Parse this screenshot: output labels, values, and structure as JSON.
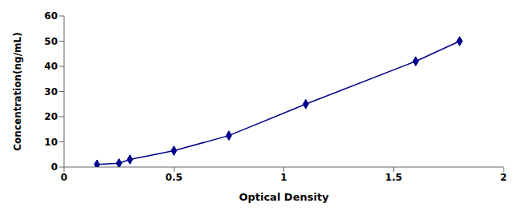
{
  "chart_data": {
    "type": "line",
    "x": [
      0.15,
      0.25,
      0.3,
      0.5,
      0.75,
      1.1,
      1.6,
      1.8
    ],
    "values": [
      1.0,
      1.5,
      3.0,
      6.5,
      12.5,
      25.0,
      42.0,
      50.0
    ],
    "xlabel": "Optical Density",
    "ylabel": "Concentration(ng/mL)",
    "xlim": [
      0,
      2
    ],
    "ylim": [
      0,
      60
    ],
    "xticks": [
      0,
      0.5,
      1,
      1.5,
      2
    ],
    "yticks": [
      0,
      10,
      20,
      30,
      40,
      50,
      60
    ],
    "color": "#00008B",
    "marker": "diamond",
    "line_style": "solid"
  }
}
